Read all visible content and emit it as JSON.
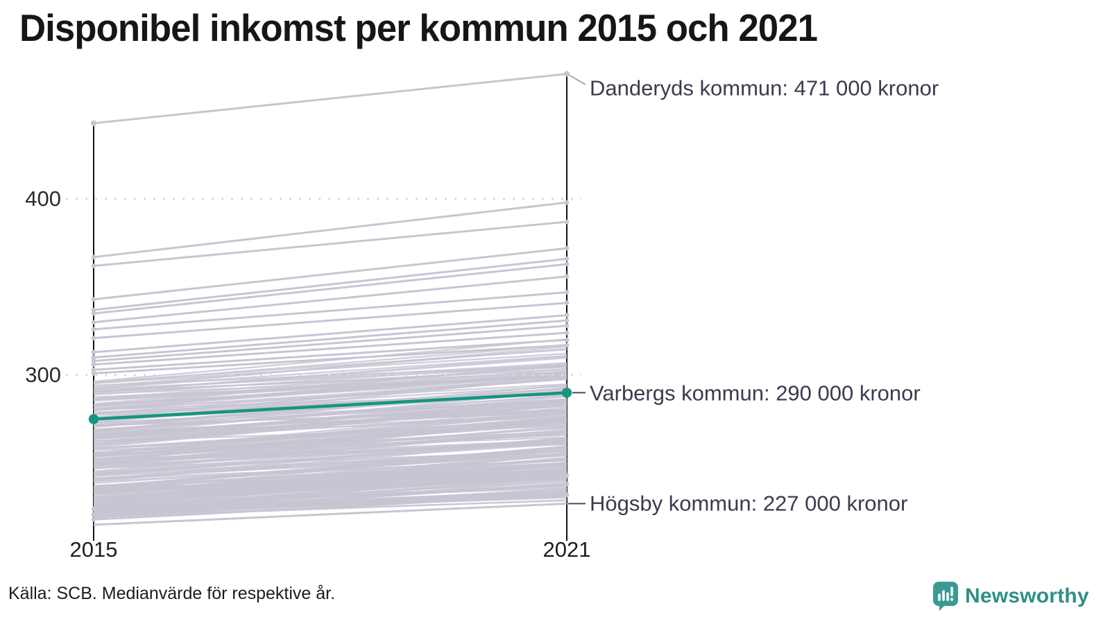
{
  "title": "Disponibel inkomst per kommun 2015 och 2021",
  "source_note": "Källa: SCB. Medianvärde för respektive år.",
  "axis": {
    "y_ticks": [
      "400",
      "300"
    ],
    "x_labels": [
      "2015",
      "2021"
    ]
  },
  "logo": {
    "brand": "Newsworthy",
    "icon": "bar-chart-speech-bubble-icon",
    "icon_bg": "#3D9A93",
    "text_color": "#2E8F88"
  },
  "chart_data": {
    "type": "line",
    "variant": "slopegraph",
    "title": "Disponibel inkomst per kommun 2015 och 2021",
    "x_categories": [
      "2015",
      "2021"
    ],
    "y_tick_values": [
      400,
      300
    ],
    "ylim": [
      210,
      480
    ],
    "grid": "dotted horizontal lines at y ticks",
    "legend": "none",
    "labeled_series": [
      {
        "name": "Danderyds kommun",
        "values": [
          443,
          471
        ],
        "label": "Danderyds kommun: 471 000 kronor",
        "style": "gray",
        "dots": true
      },
      {
        "name": "Varbergs kommun",
        "values": [
          275,
          290
        ],
        "label": "Varbergs kommun: 290 000 kronor",
        "style": "highlight",
        "dots": true
      },
      {
        "name": "Högsby kommun",
        "values": [
          215,
          227
        ],
        "label": "Högsby kommun: 227 000 kronor",
        "style": "gray",
        "dots": false
      }
    ],
    "notable_background_lines": [
      [
        367,
        398
      ],
      [
        362,
        387
      ],
      [
        343,
        372
      ],
      [
        337,
        366
      ],
      [
        335,
        363
      ],
      [
        330,
        356
      ],
      [
        326,
        347
      ],
      [
        321,
        341
      ],
      [
        313,
        334
      ],
      [
        310,
        331
      ],
      [
        308,
        328
      ],
      [
        306,
        324
      ],
      [
        303,
        320
      ],
      [
        301,
        317
      ],
      [
        224,
        243
      ],
      [
        221,
        238
      ],
      [
        218,
        232
      ]
    ],
    "dense_band": {
      "description": "Remaining Swedish municipalities drawn as an unreadable dense band of upward slopes",
      "count": 215,
      "v2015_range": [
        219,
        297
      ],
      "uplift_range": [
        8,
        26
      ],
      "seed": 42
    },
    "colors": {
      "line_gray": "#C7C5D2",
      "highlight": "#14967F",
      "axis": "#111111",
      "grid": "#D8D8E1",
      "leader_light": "#9A9AA4",
      "leader_dark": "#4A4A52"
    }
  }
}
